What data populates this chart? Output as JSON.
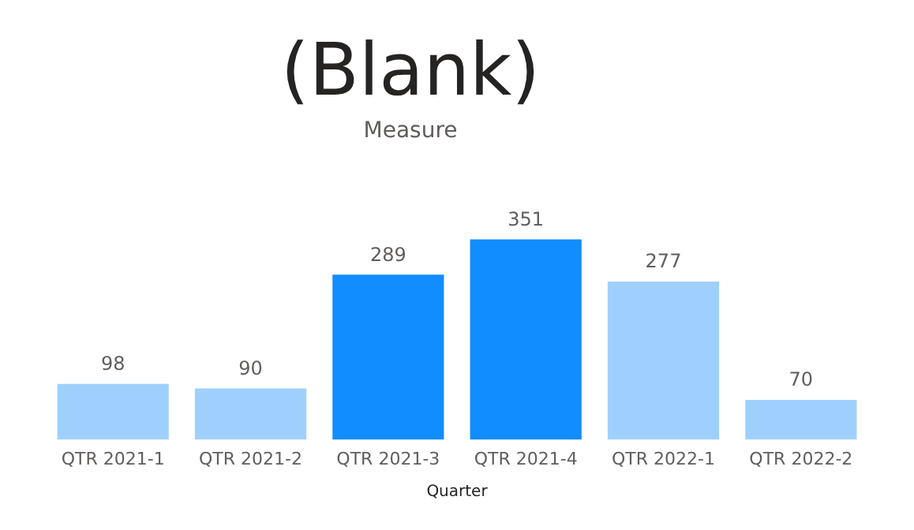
{
  "chart_data": [
    {
      "type": "other",
      "annotations": [
        "(Blank)",
        "Measure"
      ]
    },
    {
      "type": "bar",
      "xlabel": "Quarter",
      "categories": [
        "QTR 2021-1",
        "QTR 2021-2",
        "QTR 2021-3",
        "QTR 2021-4",
        "QTR 2022-1",
        "QTR 2022-2"
      ],
      "values": [
        98,
        90,
        289,
        351,
        277,
        70
      ],
      "colors": [
        "#9fd0fd",
        "#9fd0fd",
        "#118dff",
        "#118dff",
        "#9fd0fd",
        "#9fd0fd"
      ],
      "data_labels": true,
      "grid": false,
      "legend": false
    }
  ]
}
